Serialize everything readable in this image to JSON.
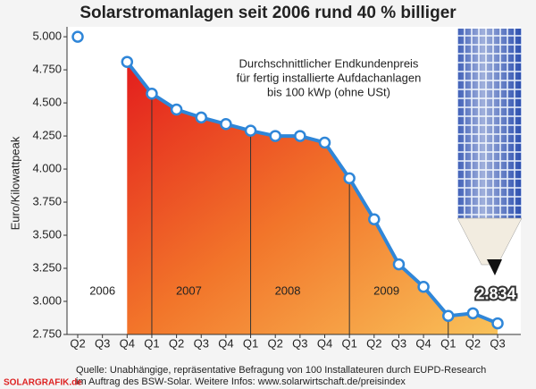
{
  "chart_data": {
    "type": "line",
    "title": "Solarstromanlagen seit 2006 rund 40 % billiger",
    "annotation": [
      "Durchschnittlicher Endkundenpreis",
      "für fertig installierte Aufdachanlagen",
      "bis 100 kWp (ohne USt)"
    ],
    "y_label": "Euro/Kilowattpeak",
    "categories": [
      "Q2",
      "Q3",
      "Q4",
      "Q1",
      "Q2",
      "Q3",
      "Q4",
      "Q1",
      "Q2",
      "Q3",
      "Q4",
      "Q1",
      "Q2",
      "Q3",
      "Q4",
      "Q1",
      "Q2",
      "Q3"
    ],
    "years": [
      "2006",
      "2007",
      "2008",
      "2009"
    ],
    "series": [
      {
        "name": null,
        "color": "#2f86d8",
        "values": [
          5000,
          null,
          4810,
          4570,
          4450,
          4390,
          4340,
          4290,
          4250,
          4250,
          4200,
          3930,
          3620,
          3280,
          3110,
          2890,
          2910,
          2834
        ],
        "value_labels": [
          null,
          null,
          null,
          null,
          null,
          null,
          null,
          null,
          null,
          null,
          null,
          null,
          null,
          null,
          null,
          null,
          null,
          "2.834"
        ]
      }
    ],
    "ylim": [
      2750,
      5075
    ],
    "yticks": [
      {
        "value": 2750,
        "label": "2.750"
      },
      {
        "value": 3000,
        "label": "3.000"
      },
      {
        "value": 3250,
        "label": "3.250"
      },
      {
        "value": 3500,
        "label": "3.500"
      },
      {
        "value": 3750,
        "label": "3.750"
      },
      {
        "value": 4000,
        "label": "4.000"
      },
      {
        "value": 4250,
        "label": "4.250"
      },
      {
        "value": 4500,
        "label": "4.500"
      },
      {
        "value": 4750,
        "label": "4.750"
      },
      {
        "value": 5000,
        "label": "5.000"
      }
    ],
    "source": [
      "Quelle: Unabhängige, repräsentative Befragung von 100 Installateuren durch EUPD-Research",
      "im Auftrag des BSW-Solar. Weitere Infos: www.solarwirtschaft.de/preisindex"
    ],
    "credit": "SOLARGRAFIK.de"
  }
}
